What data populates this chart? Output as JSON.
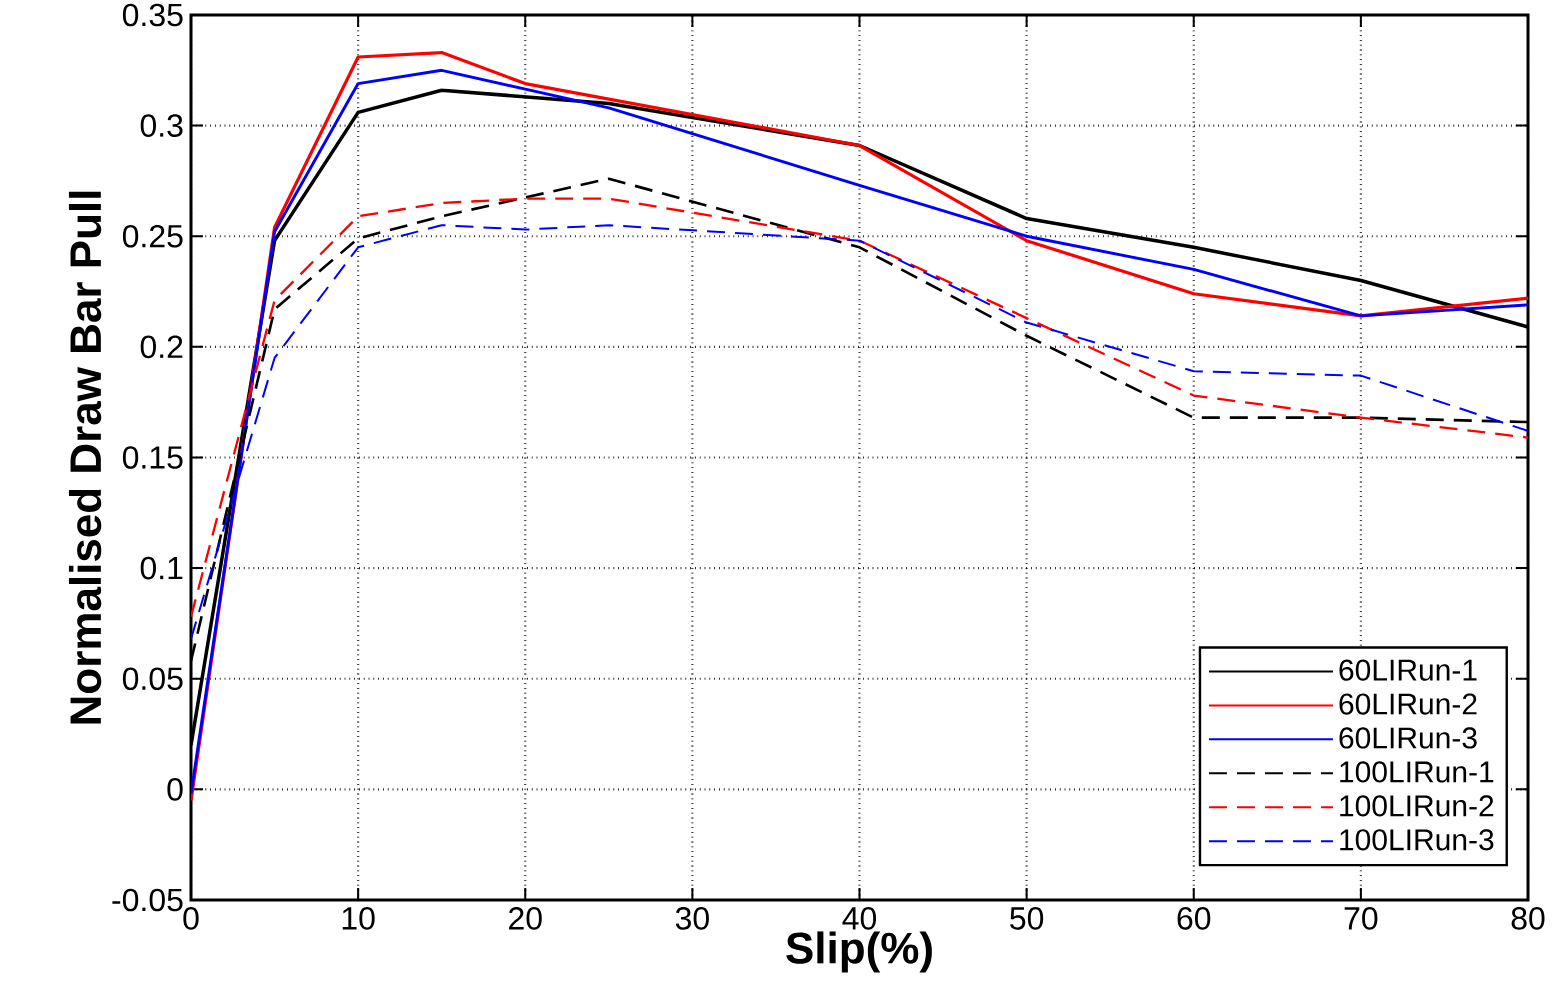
{
  "chart_data": {
    "type": "line",
    "xlabel": "Slip(%)",
    "ylabel": "Normalised Draw Bar Pull",
    "xlim": [
      0,
      80
    ],
    "xticks": [
      0,
      10,
      20,
      30,
      40,
      50,
      60,
      70,
      80
    ],
    "ylim": [
      -0.05,
      0.35
    ],
    "yticks": [
      -0.05,
      0,
      0.05,
      0.1,
      0.15,
      0.2,
      0.25,
      0.3,
      0.35
    ],
    "grid": true,
    "legend": "bottom right",
    "series": [
      {
        "name": "60LIRun-1",
        "color": "#000000",
        "line_style": "solid",
        "x": [
          0,
          5,
          10,
          15,
          25,
          40,
          50,
          60,
          70,
          80
        ],
        "values": [
          0.02,
          0.248,
          0.306,
          0.316,
          0.31,
          0.291,
          0.258,
          0.245,
          0.23,
          0.209
        ]
      },
      {
        "name": "60LIRun-2",
        "color": "#ff0000",
        "line_style": "solid",
        "x": [
          0,
          5,
          10,
          15,
          20,
          40,
          50,
          60,
          70,
          80
        ],
        "values": [
          -0.005,
          0.254,
          0.331,
          0.333,
          0.319,
          0.291,
          0.248,
          0.224,
          0.214,
          0.222
        ]
      },
      {
        "name": "60LIRun-3",
        "color": "#0000ff",
        "line_style": "solid",
        "x": [
          0,
          5,
          10,
          15,
          25,
          40,
          50,
          60,
          70,
          80
        ],
        "values": [
          -0.002,
          0.252,
          0.319,
          0.325,
          0.308,
          0.273,
          0.25,
          0.235,
          0.214,
          0.219
        ]
      },
      {
        "name": "100LIRun-1",
        "color": "#000000",
        "line_style": "dashed",
        "x": [
          0,
          5,
          10,
          15,
          25,
          40,
          50,
          60,
          70,
          80
        ],
        "values": [
          0.058,
          0.217,
          0.249,
          0.259,
          0.276,
          0.245,
          0.205,
          0.168,
          0.168,
          0.166
        ]
      },
      {
        "name": "100LIRun-2",
        "color": "#ff0000",
        "line_style": "dashed",
        "x": [
          0,
          5,
          10,
          15,
          20,
          25,
          40,
          50,
          60,
          70,
          80
        ],
        "values": [
          0.078,
          0.221,
          0.259,
          0.265,
          0.267,
          0.267,
          0.248,
          0.213,
          0.178,
          0.168,
          0.159
        ]
      },
      {
        "name": "100LIRun-3",
        "color": "#0000ff",
        "line_style": "dashed",
        "x": [
          0,
          5,
          10,
          15,
          20,
          25,
          40,
          50,
          60,
          70,
          80
        ],
        "values": [
          0.068,
          0.195,
          0.245,
          0.255,
          0.253,
          0.255,
          0.248,
          0.211,
          0.189,
          0.187,
          0.162
        ]
      }
    ]
  }
}
